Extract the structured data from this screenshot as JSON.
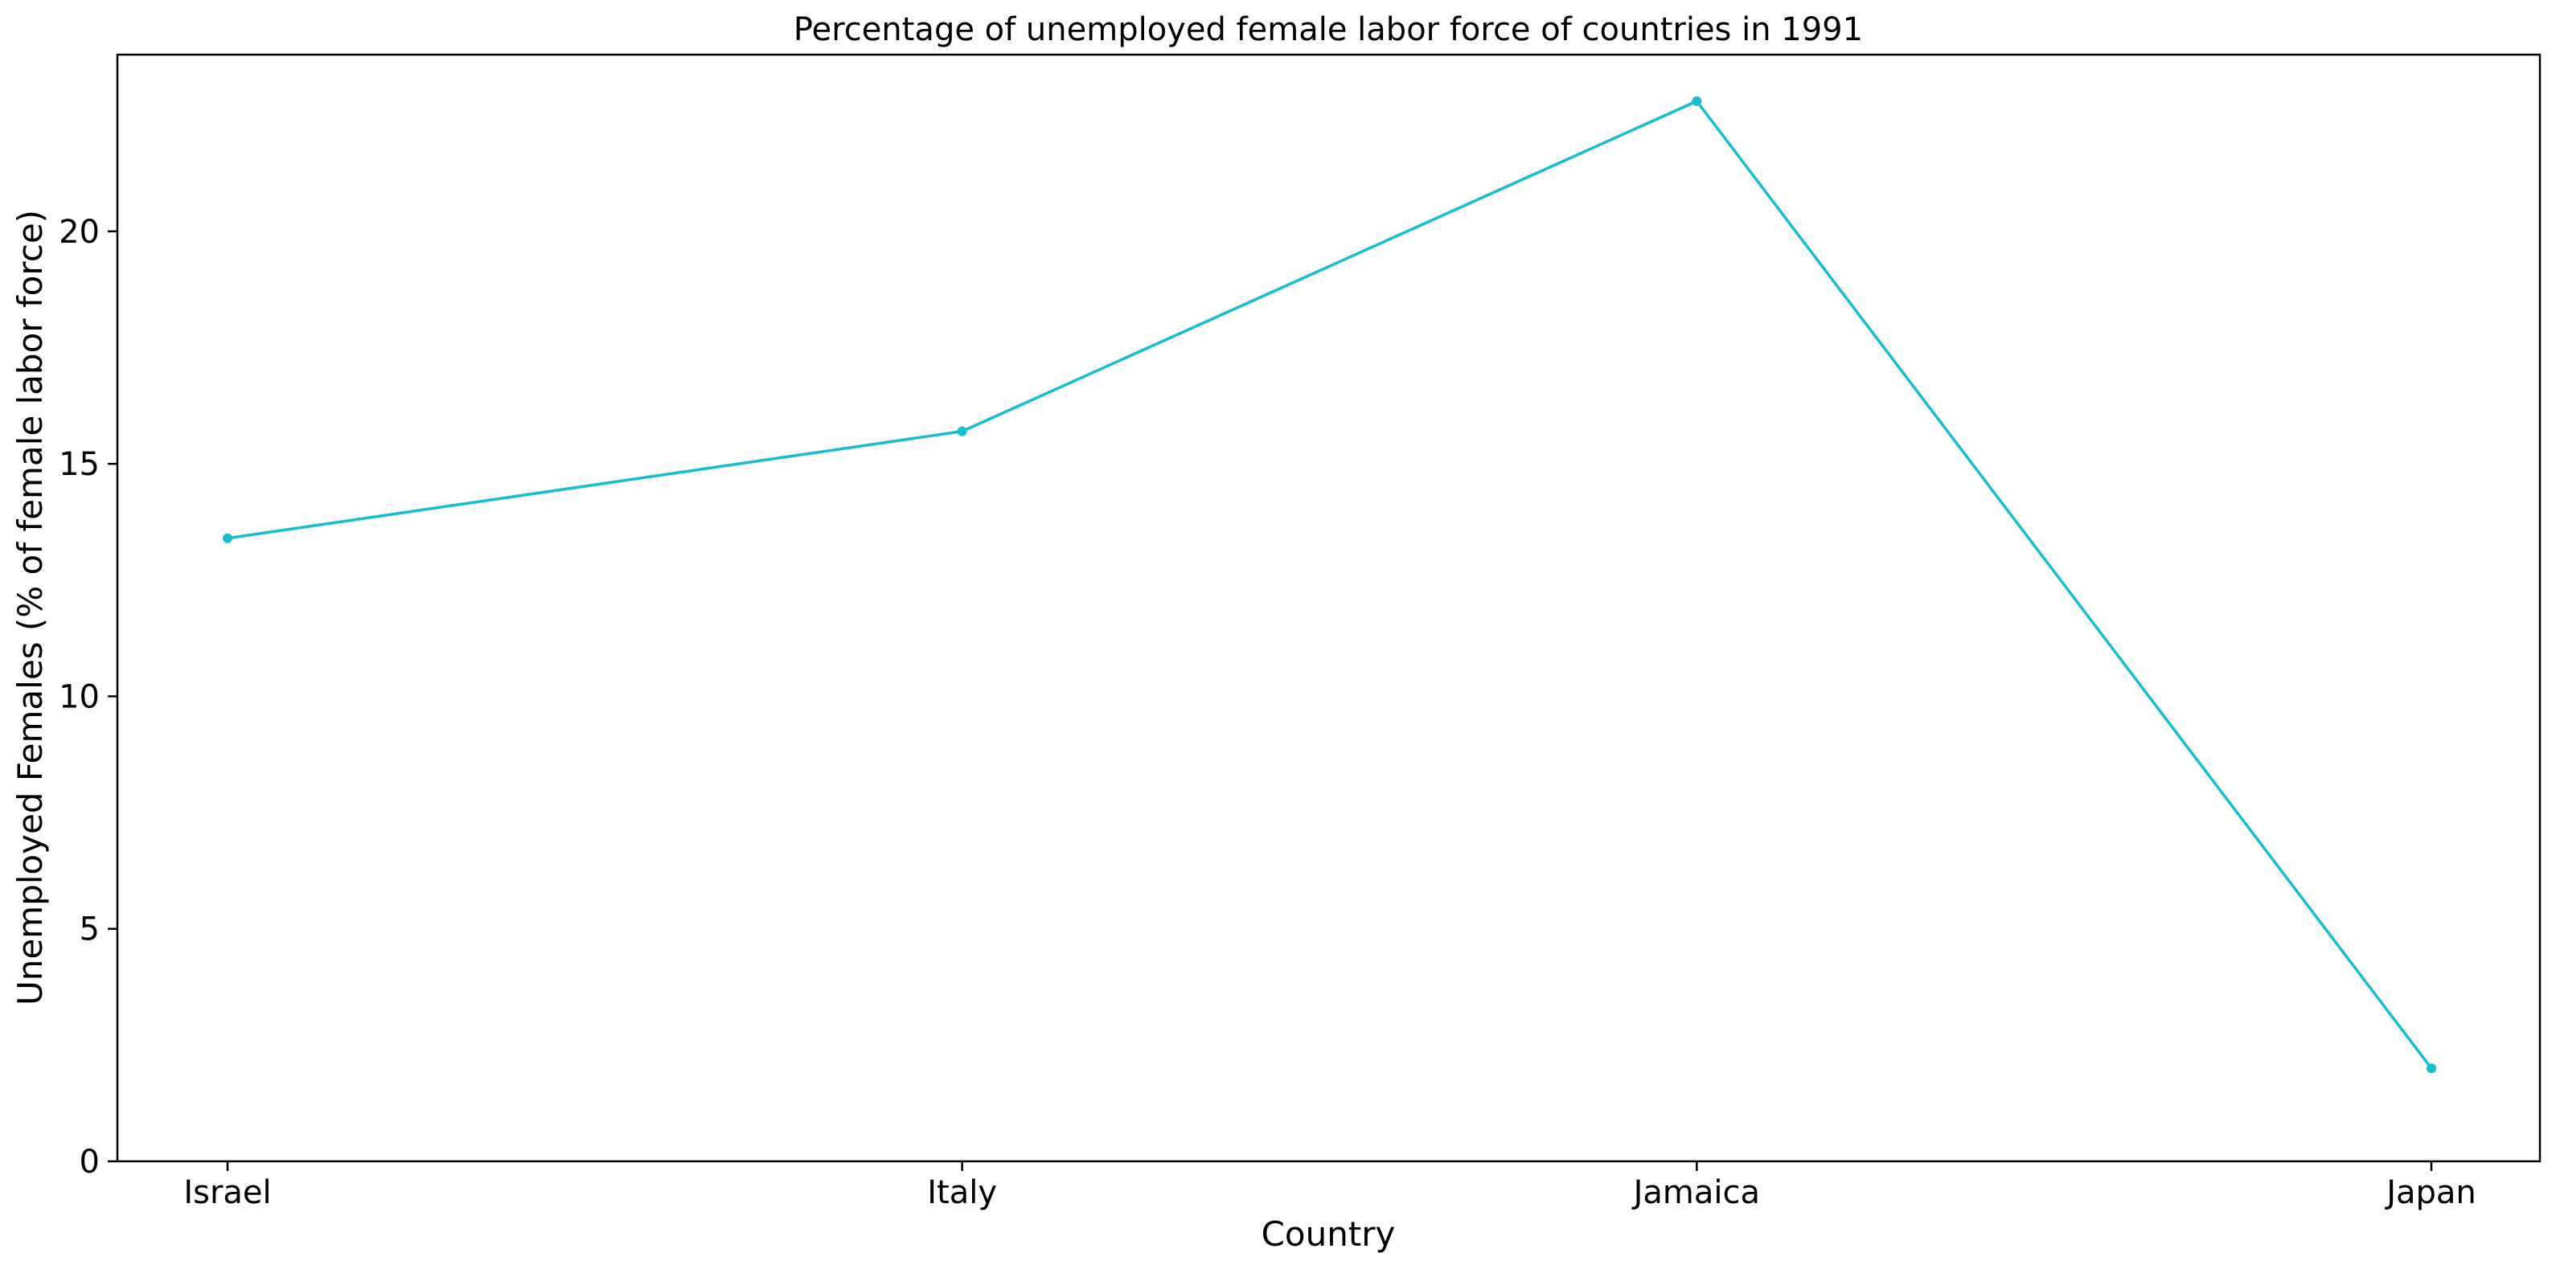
{
  "chart_data": {
    "type": "line",
    "title": "Percentage of unemployed female labor force of countries in 1991",
    "xlabel": "Country",
    "ylabel": "Unemployed Females (% of female labor force)",
    "categories": [
      "Israel",
      "Italy",
      "Jamaica",
      "Japan"
    ],
    "series": [
      {
        "values": [
          13.4,
          15.7,
          22.8,
          2.0
        ],
        "color": "#17becf"
      }
    ],
    "ylim": [
      0,
      23.8
    ],
    "yticks": [
      0,
      5,
      10,
      15,
      20
    ],
    "grid": false,
    "legend": "none"
  }
}
